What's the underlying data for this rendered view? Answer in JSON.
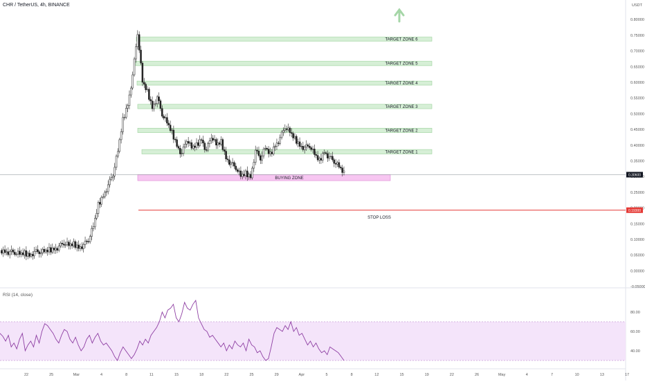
{
  "header": {
    "symbol": "CHR / TetherUS, 4h, BINANCE"
  },
  "rsi_label": "RSI (14, close)",
  "colors": {
    "candle": "#222222",
    "zone_target_fill": "#d6efd6",
    "zone_target_stroke": "#9bd19b",
    "zone_buy_fill": "#f7c6f1",
    "zone_buy_stroke": "#dc86d4",
    "stop_line": "#e53935",
    "rsi_line": "#8e3fa3",
    "rsi_band": "#f4e4fa",
    "arrow": "#a5d6a7"
  },
  "chart_data": [
    {
      "type": "candlestick",
      "exchange": "BINANCE",
      "pair": "CHR / TetherUS",
      "interval": "4h",
      "y_unit": "USDT",
      "ylim": [
        -0.03,
        0.84
      ],
      "y_ticks": [
        "0.80000",
        "0.75000",
        "0.70000",
        "0.65000",
        "0.60000",
        "0.55000",
        "0.50000",
        "0.45000",
        "0.40000",
        "0.35000",
        "0.30000",
        "0.25000",
        "0.20000",
        "0.15000",
        "0.10000",
        "0.05000",
        "0.00000",
        "-0.05000"
      ],
      "x_ticks": [
        "22",
        "25",
        "Mar",
        "4",
        "8",
        "11",
        "15",
        "18",
        "22",
        "25",
        "29",
        "Apr",
        "5",
        "8",
        "12",
        "15",
        "19",
        "22",
        "26",
        "May",
        "4",
        "7",
        "10",
        "13",
        "17"
      ],
      "last_price_label": "0.30600",
      "stop_label_price": "0.19300",
      "close_path": [
        0.065,
        0.062,
        0.058,
        0.06,
        0.052,
        0.056,
        0.05,
        0.058,
        0.062,
        0.06,
        0.066,
        0.07,
        0.075,
        0.09,
        0.08,
        0.085,
        0.075,
        0.08,
        0.1,
        0.14,
        0.21,
        0.24,
        0.27,
        0.31,
        0.38,
        0.48,
        0.53,
        0.62,
        0.76,
        0.6,
        0.57,
        0.52,
        0.55,
        0.5,
        0.47,
        0.44,
        0.4,
        0.37,
        0.42,
        0.39,
        0.4,
        0.42,
        0.38,
        0.43,
        0.4,
        0.41,
        0.36,
        0.34,
        0.33,
        0.3,
        0.31,
        0.3,
        0.38,
        0.36,
        0.39,
        0.37,
        0.4,
        0.42,
        0.46,
        0.44,
        0.42,
        0.4,
        0.39,
        0.4,
        0.37,
        0.35,
        0.38,
        0.36,
        0.35,
        0.33,
        0.31
      ],
      "annotations": [
        {
          "label": "TARGET ZONE 6",
          "y_low": 0.731,
          "y_high": 0.744
        },
        {
          "label": "TARGET ZONE 5",
          "y_low": 0.653,
          "y_high": 0.667
        },
        {
          "label": "TARGET ZONE 4",
          "y_low": 0.591,
          "y_high": 0.604
        },
        {
          "label": "TARGET ZONE 3",
          "y_low": 0.516,
          "y_high": 0.53
        },
        {
          "label": "TARGET ZONE 2",
          "y_low": 0.44,
          "y_high": 0.454
        },
        {
          "label": "TARGET ZONE 1",
          "y_low": 0.372,
          "y_high": 0.386
        },
        {
          "label": "BUYING ZONE",
          "y_low": 0.287,
          "y_high": 0.306
        },
        {
          "label": "STOP LOSS",
          "y": 0.193
        }
      ]
    },
    {
      "type": "line",
      "title": "RSI (14, close)",
      "ylim": [
        25,
        95
      ],
      "y_ticks": [
        "80.00",
        "60.00",
        "40.00"
      ],
      "band": [
        30,
        70
      ],
      "values": [
        58,
        55,
        50,
        56,
        44,
        48,
        42,
        52,
        58,
        40,
        46,
        50,
        44,
        56,
        48,
        60,
        68,
        66,
        62,
        58,
        52,
        48,
        56,
        62,
        60,
        52,
        48,
        54,
        46,
        40,
        44,
        52,
        56,
        48,
        54,
        58,
        50,
        46,
        48,
        44,
        40,
        34,
        30,
        38,
        44,
        40,
        36,
        32,
        36,
        42,
        50,
        46,
        52,
        48,
        56,
        60,
        64,
        70,
        80,
        74,
        82,
        84,
        88,
        74,
        70,
        78,
        90,
        84,
        82,
        88,
        92,
        74,
        68,
        62,
        60,
        54,
        56,
        52,
        48,
        44,
        48,
        40,
        46,
        42,
        50,
        46,
        44,
        48,
        40,
        52,
        46,
        44,
        38,
        40,
        34,
        30,
        32,
        44,
        58,
        64,
        62,
        60,
        66,
        62,
        70,
        60,
        64,
        56,
        58,
        52,
        46,
        50,
        44,
        48,
        42,
        38,
        40,
        36,
        44,
        42,
        40,
        38,
        34,
        30
      ]
    }
  ]
}
